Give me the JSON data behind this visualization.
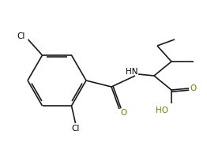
{
  "background_color": "#ffffff",
  "line_color": "#1a1a1a",
  "label_color_black": "#000000",
  "label_color_olive": "#7a7a00",
  "label_Cl_top": "Cl",
  "label_Cl_bot": "Cl",
  "label_HN": "HN",
  "label_O1": "O",
  "label_O2": "O",
  "label_HO": "HO",
  "line_width": 1.2,
  "font_size": 7.5
}
